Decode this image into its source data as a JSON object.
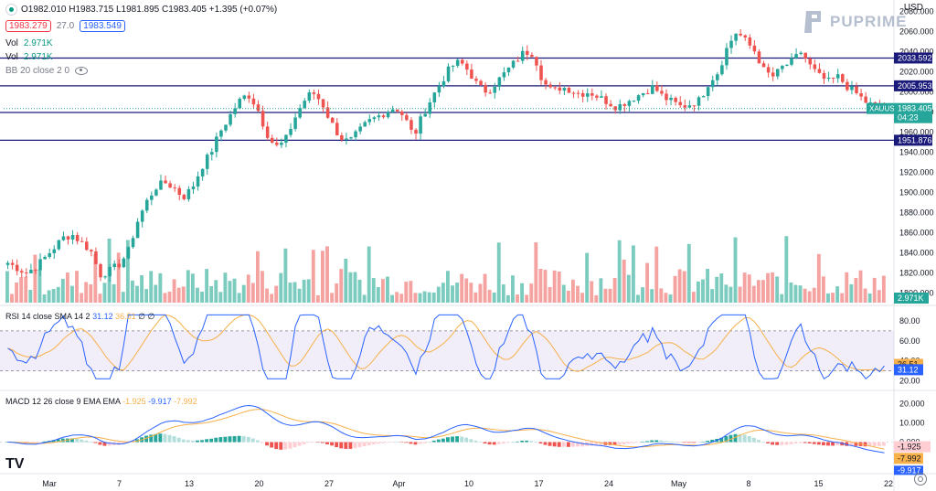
{
  "header": {
    "ohlc": "O1982.010  H1983.715  L1981.895  C1983.405  +1.395 (+0.07%)",
    "sell_price": "1983.279",
    "spread": "27.0",
    "buy_price": "1983.549",
    "vol1_label": "Vol",
    "vol1_value": "2.971K",
    "vol2_label": "Vol",
    "vol2_value": "2.971K",
    "bb_label": "BB 20 close 2 0"
  },
  "currency": "USD",
  "brand": "PUPRIME",
  "rsi_legend": {
    "label": "RSI 14 close SMA 14 2",
    "v1": "31.12",
    "v2": "36.51",
    "tail": "∅ ∅"
  },
  "macd_legend": {
    "label": "MACD 12 26 close 9 EMA EMA",
    "v1": "-1.925",
    "v2": "-9.917",
    "v3": "-7.992"
  },
  "colors": {
    "up": "#26a69a",
    "down": "#ef5350",
    "hline": "#1a1a7a",
    "rsi": "#2962ff",
    "rsi_ma": "#f7b04a",
    "macd": "#2962ff",
    "signal": "#f7b04a"
  },
  "chart_data": {
    "type": "candlestick",
    "symbol": "XAUUSD",
    "x_labels": [
      "Mar",
      "7",
      "13",
      "20",
      "27",
      "Apr",
      "10",
      "17",
      "24",
      "May",
      "8",
      "15",
      "22"
    ],
    "price_axis": {
      "ticks": [
        2080,
        2060,
        2040,
        2020,
        2000,
        1980,
        1960,
        1940,
        1920,
        1900,
        1880,
        1860,
        1840,
        1820,
        1800
      ],
      "range": [
        1795,
        2084
      ]
    },
    "price_labels": {
      "last": "1983.405",
      "countdown": "04:23"
    },
    "horizontal_levels": [
      "2033.592",
      "2005.953",
      "1979.515",
      "1951.876"
    ],
    "volume_last": "2.971K",
    "close_path": [
      1830,
      1825,
      1820,
      1826,
      1835,
      1845,
      1855,
      1858,
      1850,
      1842,
      1818,
      1822,
      1828,
      1840,
      1870,
      1890,
      1905,
      1910,
      1905,
      1895,
      1905,
      1925,
      1940,
      1960,
      1975,
      1990,
      1998,
      1985,
      1960,
      1945,
      1950,
      1972,
      1990,
      2000,
      1990,
      1970,
      1955,
      1950,
      1960,
      1970,
      1975,
      1980,
      1985,
      1975,
      1955,
      1978,
      1995,
      2010,
      2025,
      2030,
      2020,
      2005,
      2000,
      2010,
      2020,
      2030,
      2040,
      2038,
      2010,
      2000,
      2005,
      2002,
      1998,
      2000,
      1995,
      1990,
      1985,
      1990,
      1995,
      2000,
      2005,
      1995,
      1990,
      1985,
      1988,
      1992,
      2010,
      2020,
      2045,
      2060,
      2050,
      2040,
      2020,
      2015,
      2025,
      2030,
      2040,
      2025,
      2015,
      2010,
      2015,
      2005,
      1998,
      1990,
      1985,
      1983
    ],
    "volume": {
      "ticks": []
    },
    "rsi": {
      "ticks": [
        "80.00",
        "60.00",
        "40.00",
        "20.00"
      ],
      "last": "31.12",
      "ma_last": "36.51",
      "bands": [
        70,
        30
      ]
    },
    "macd": {
      "ticks": [
        "20.000",
        "10.000",
        "0.000"
      ],
      "last_hist": "-1.925",
      "last_macd": "-9.917",
      "last_signal": "-7.992"
    }
  }
}
